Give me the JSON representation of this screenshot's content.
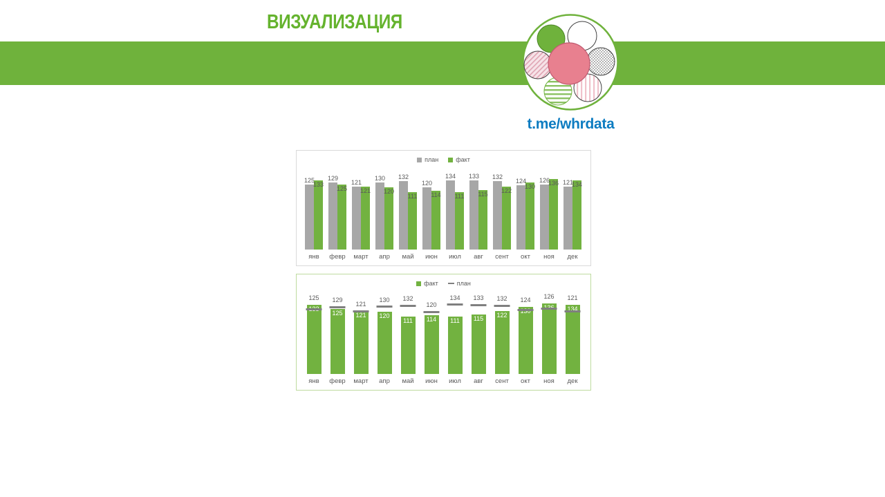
{
  "page": {
    "title": "ВИЗУАЛИЗАЦИЯ",
    "link": "t.me/whrdata"
  },
  "colors": {
    "banner_green": "#6fb23c",
    "title_green": "#65b32e",
    "bar_green": "#72b240",
    "bar_gray": "#a7a7a7",
    "marker_gray": "#7f7f7f",
    "label_gray": "#595959",
    "link_blue": "#0d7cc1",
    "box1_border": "#d9d9d9",
    "box2_border": "#bedb9f",
    "logo_pink": "#e8808f"
  },
  "chart_data": [
    {
      "type": "bar",
      "title": "",
      "legend_position": "top",
      "categories": [
        "янв",
        "февр",
        "март",
        "апр",
        "май",
        "июн",
        "июл",
        "авг",
        "сент",
        "окт",
        "ноя",
        "дек"
      ],
      "series": [
        {
          "name": "план",
          "style": "bar",
          "color": "#a7a7a7",
          "values": [
            125,
            129,
            121,
            130,
            132,
            120,
            134,
            133,
            132,
            124,
            126,
            121
          ]
        },
        {
          "name": "факт",
          "style": "bar",
          "color": "#72b240",
          "values": [
            133,
            125,
            121,
            120,
            111,
            114,
            111,
            115,
            122,
            130,
            136,
            134
          ]
        }
      ],
      "ylim": [
        0,
        140
      ],
      "grid": false
    },
    {
      "type": "bar",
      "title": "",
      "legend_position": "top",
      "categories": [
        "янв",
        "февр",
        "март",
        "апр",
        "май",
        "июн",
        "июл",
        "авг",
        "сент",
        "окт",
        "ноя",
        "дек"
      ],
      "series": [
        {
          "name": "факт",
          "style": "bar",
          "color": "#72b240",
          "values": [
            133,
            125,
            121,
            120,
            111,
            114,
            111,
            115,
            122,
            130,
            136,
            134
          ]
        },
        {
          "name": "план",
          "style": "dash-marker",
          "color": "#7f7f7f",
          "values": [
            125,
            129,
            121,
            130,
            132,
            120,
            134,
            133,
            132,
            124,
            126,
            121
          ]
        }
      ],
      "ylim": [
        0,
        140
      ],
      "grid": false
    }
  ]
}
